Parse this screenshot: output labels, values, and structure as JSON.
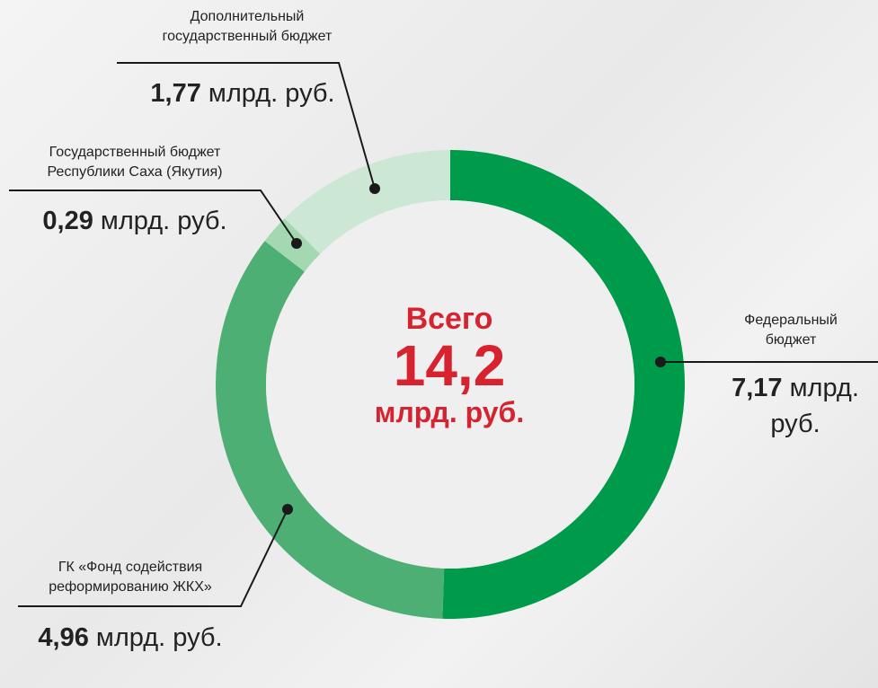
{
  "chart_data": {
    "type": "donut",
    "categories": [
      "Федеральный\nбюджет",
      "ГК «Фонд содействия\nреформированию ЖКХ»",
      "Государственный бюджет\nРеспублики Саха (Якутия)",
      "Дополнительный\nгосударственный бюджет"
    ],
    "values": [
      7.17,
      4.96,
      0.29,
      1.77
    ],
    "value_labels": [
      "7,17",
      "4,96",
      "0,29",
      "1,77"
    ],
    "unit": "млрд. руб.",
    "colors": [
      "#009a4b",
      "#4daf73",
      "#a3d8b1",
      "#cce8d4"
    ],
    "center": {
      "title": "Всего",
      "value_label": "14,2",
      "unit": "млрд. руб."
    }
  }
}
